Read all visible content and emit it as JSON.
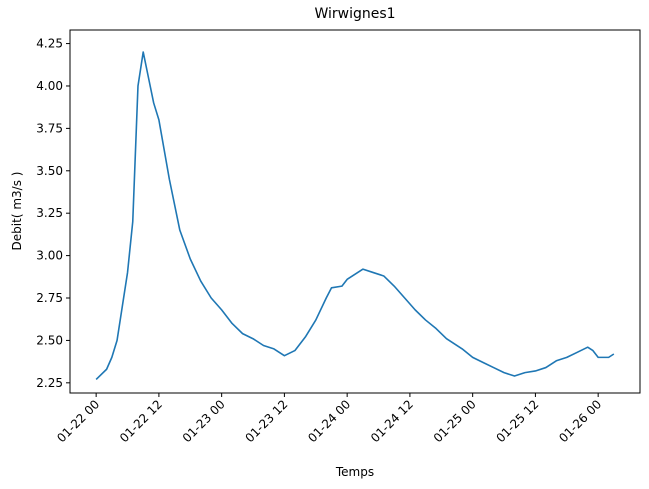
{
  "chart_data": {
    "type": "line",
    "title": "Wirwignes1",
    "x_label": "Temps",
    "y_label": "Debit( m3/s )",
    "x": [
      "01-22 00",
      "01-22 02",
      "01-22 03",
      "01-22 04",
      "01-22 05",
      "01-22 06",
      "01-22 07",
      "01-22 08",
      "01-22 09",
      "01-22 10",
      "01-22 11",
      "01-22 12",
      "01-22 14",
      "01-22 16",
      "01-22 18",
      "01-22 20",
      "01-22 22",
      "01-23 00",
      "01-23 02",
      "01-23 04",
      "01-23 06",
      "01-23 08",
      "01-23 10",
      "01-23 12",
      "01-23 14",
      "01-23 16",
      "01-23 18",
      "01-23 20",
      "01-23 21",
      "01-23 23",
      "01-24 00",
      "01-24 02",
      "01-24 03",
      "01-24 05",
      "01-24 07",
      "01-24 09",
      "01-24 11",
      "01-24 13",
      "01-24 15",
      "01-24 17",
      "01-24 19",
      "01-24 22",
      "01-25 00",
      "01-25 02",
      "01-25 04",
      "01-25 06",
      "01-25 08",
      "01-25 10",
      "01-25 12",
      "01-25 14",
      "01-25 16",
      "01-25 18",
      "01-25 20",
      "01-25 22",
      "01-25 23",
      "01-26 00",
      "01-26 02",
      "01-26 03"
    ],
    "series": [
      {
        "color": "#1f77b4",
        "values": [
          2.27,
          2.33,
          2.4,
          2.5,
          2.7,
          2.9,
          3.2,
          4.0,
          4.2,
          4.05,
          3.9,
          3.8,
          3.45,
          3.15,
          2.98,
          2.85,
          2.75,
          2.68,
          2.6,
          2.54,
          2.51,
          2.47,
          2.45,
          2.41,
          2.44,
          2.52,
          2.62,
          2.75,
          2.81,
          2.82,
          2.86,
          2.9,
          2.92,
          2.9,
          2.88,
          2.82,
          2.75,
          2.68,
          2.62,
          2.57,
          2.51,
          2.45,
          2.4,
          2.37,
          2.34,
          2.31,
          2.29,
          2.31,
          2.32,
          2.34,
          2.38,
          2.4,
          2.43,
          2.46,
          2.44,
          2.4,
          2.4,
          2.42
        ]
      }
    ],
    "xlim": [
      "01-21 19",
      "01-26 08"
    ],
    "xticks": [
      "01-22 00",
      "01-22 12",
      "01-23 00",
      "01-23 12",
      "01-24 00",
      "01-24 12",
      "01-25 00",
      "01-25 12",
      "01-26 00"
    ],
    "ylim": [
      2.19,
      4.33
    ],
    "yticks": [
      2.25,
      {
        "value": 2.5,
        "label": "2.50"
      },
      2.75,
      {
        "value": 3,
        "label": "3.00"
      },
      3.25,
      {
        "value": 3.5,
        "label": "3.50"
      },
      3.75,
      {
        "value": 4,
        "label": "4.00"
      },
      4.25
    ]
  }
}
